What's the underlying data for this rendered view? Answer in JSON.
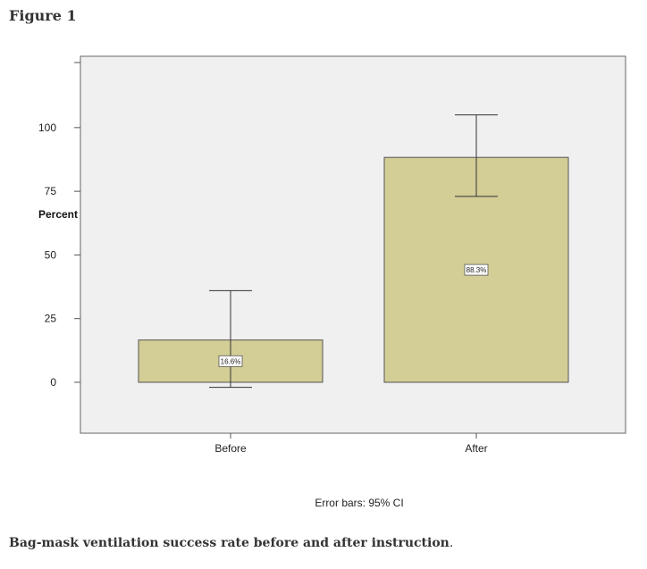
{
  "figure_label": "Figure 1",
  "caption": "Bag-mask ventilation success rate before and after instruction",
  "caption_end": ".",
  "footnote": "Error bars: 95% CI",
  "colors": {
    "bar_fill": "#d3cd96",
    "plot_bg": "#f0f0f0",
    "axis": "#555555"
  },
  "chart_data": {
    "type": "bar",
    "title": "",
    "xlabel": "",
    "ylabel": "Percent",
    "categories": [
      "Before",
      "After"
    ],
    "values": [
      16.6,
      88.3
    ],
    "data_labels": [
      "16.6%",
      "88.3%"
    ],
    "error_bars": {
      "type": "95% CI",
      "lower": [
        -2,
        73
      ],
      "upper": [
        36,
        105
      ]
    },
    "yticks": [
      0,
      25,
      50,
      75,
      100
    ],
    "ylim": [
      -20,
      128
    ],
    "grid": false,
    "legend": "none"
  }
}
